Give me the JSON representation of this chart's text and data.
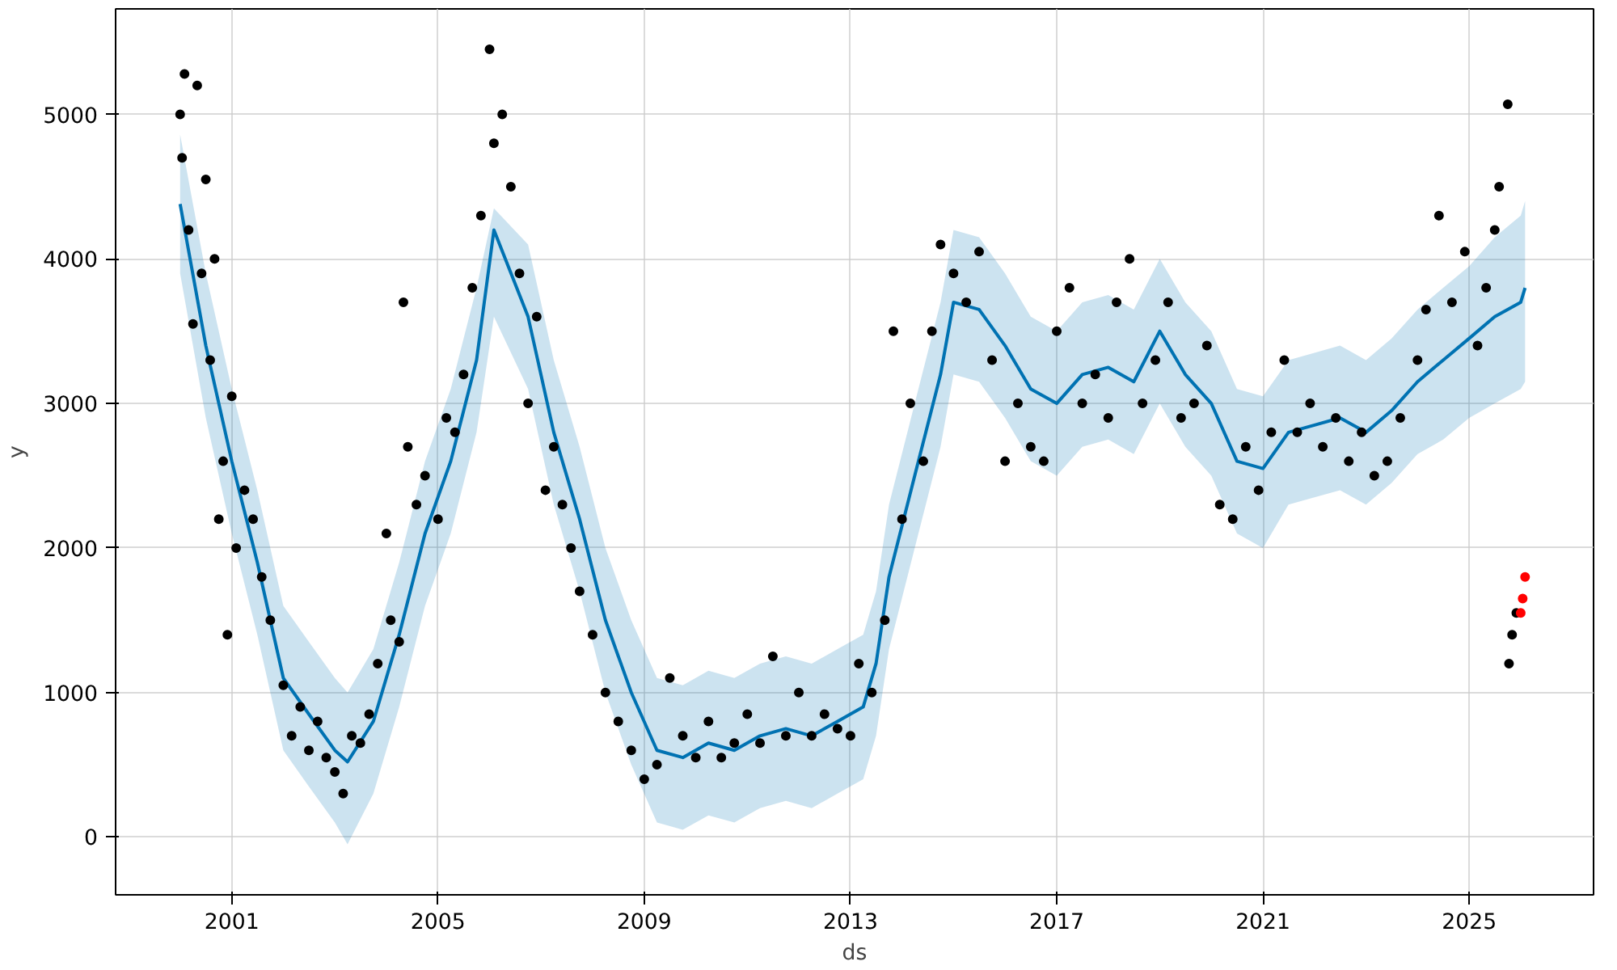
{
  "chart_data": {
    "type": "scatter",
    "xlabel": "ds",
    "ylabel": "y",
    "xlim": [
      "1998-10",
      "2027-06"
    ],
    "ylim": [
      -400,
      5730
    ],
    "xticks": [
      "2001",
      "2005",
      "2009",
      "2013",
      "2017",
      "2021",
      "2025"
    ],
    "yticks": [
      0,
      1000,
      2000,
      3000,
      4000,
      5000
    ],
    "grid": true,
    "series": [
      {
        "type": "line",
        "color": "#0072b2",
        "marker": "none",
        "line_style": "solid",
        "x": [
          "2000-01",
          "2000-07",
          "2001-01",
          "2001-07",
          "2002-01",
          "2002-07",
          "2003-01",
          "2003-04",
          "2003-10",
          "2004-04",
          "2004-10",
          "2005-04",
          "2005-10",
          "2006-02",
          "2006-10",
          "2007-04",
          "2007-10",
          "2008-04",
          "2008-10",
          "2009-04",
          "2009-10",
          "2010-04",
          "2010-10",
          "2011-04",
          "2011-10",
          "2012-04",
          "2012-10",
          "2013-04",
          "2013-07",
          "2013-10",
          "2014-04",
          "2014-10",
          "2015-01",
          "2015-07",
          "2016-01",
          "2016-07",
          "2017-01",
          "2017-07",
          "2018-01",
          "2018-07",
          "2019-01",
          "2019-07",
          "2020-01",
          "2020-07",
          "2021-01",
          "2021-07",
          "2022-01",
          "2022-07",
          "2023-01",
          "2023-07",
          "2024-01",
          "2024-07",
          "2025-01",
          "2025-07",
          "2026-01",
          "2026-02"
        ],
        "values": [
          4380,
          3400,
          2600,
          1900,
          1100,
          850,
          600,
          520,
          800,
          1400,
          2100,
          2600,
          3300,
          4200,
          3600,
          2800,
          2200,
          1500,
          1000,
          600,
          550,
          650,
          600,
          700,
          750,
          700,
          800,
          900,
          1200,
          1800,
          2500,
          3200,
          3700,
          3650,
          3400,
          3100,
          3000,
          3200,
          3250,
          3150,
          3500,
          3200,
          3000,
          2600,
          2550,
          2800,
          2850,
          2900,
          2800,
          2950,
          3150,
          3300,
          3450,
          3600,
          3700,
          3800
        ],
        "lower": [
          3900,
          2900,
          2100,
          1400,
          600,
          350,
          100,
          -50,
          300,
          900,
          1600,
          2100,
          2800,
          3600,
          3100,
          2300,
          1700,
          1000,
          500,
          100,
          50,
          150,
          100,
          200,
          250,
          200,
          300,
          400,
          700,
          1300,
          2000,
          2700,
          3200,
          3150,
          2900,
          2600,
          2500,
          2700,
          2750,
          2650,
          3000,
          2700,
          2500,
          2100,
          2000,
          2300,
          2350,
          2400,
          2300,
          2450,
          2650,
          2750,
          2900,
          3000,
          3100,
          3150
        ],
        "upper": [
          4860,
          3900,
          3100,
          2400,
          1600,
          1350,
          1100,
          1000,
          1300,
          1900,
          2600,
          3100,
          3800,
          4350,
          4100,
          3300,
          2700,
          2000,
          1500,
          1100,
          1050,
          1150,
          1100,
          1200,
          1250,
          1200,
          1300,
          1400,
          1700,
          2300,
          3000,
          3700,
          4200,
          4150,
          3900,
          3600,
          3500,
          3700,
          3750,
          3650,
          4000,
          3700,
          3500,
          3100,
          3050,
          3300,
          3350,
          3400,
          3300,
          3450,
          3650,
          3800,
          3950,
          4150,
          4300,
          4400
        ]
      },
      {
        "color": "#000000",
        "marker": "circle",
        "x": [
          "2000-01",
          "2000-01-15",
          "2000-02",
          "2000-03",
          "2000-04",
          "2000-05",
          "2000-06",
          "2000-07",
          "2000-08",
          "2000-09",
          "2000-10",
          "2000-11",
          "2000-12",
          "2001-01",
          "2001-02",
          "2001-04",
          "2001-06",
          "2001-08",
          "2001-10",
          "2002-01",
          "2002-03",
          "2002-05",
          "2002-07",
          "2002-09",
          "2002-11",
          "2003-01",
          "2003-03",
          "2003-05",
          "2003-07",
          "2003-09",
          "2003-11",
          "2004-01",
          "2004-02",
          "2004-04",
          "2004-05",
          "2004-06",
          "2004-08",
          "2004-10",
          "2005-01",
          "2005-03",
          "2005-05",
          "2005-07",
          "2005-09",
          "2005-11",
          "2006-01",
          "2006-02",
          "2006-04",
          "2006-06",
          "2006-08",
          "2006-10",
          "2006-12",
          "2007-02",
          "2007-04",
          "2007-06",
          "2007-08",
          "2007-10",
          "2008-01",
          "2008-04",
          "2008-07",
          "2008-10",
          "2009-01",
          "2009-04",
          "2009-07",
          "2009-10",
          "2010-01",
          "2010-04",
          "2010-07",
          "2010-10",
          "2011-01",
          "2011-04",
          "2011-07",
          "2011-10",
          "2012-01",
          "2012-04",
          "2012-07",
          "2012-10",
          "2013-01",
          "2013-03",
          "2013-06",
          "2013-09",
          "2013-11",
          "2014-01",
          "2014-03",
          "2014-06",
          "2014-08",
          "2014-10",
          "2015-01",
          "2015-04",
          "2015-07",
          "2015-10",
          "2016-01",
          "2016-04",
          "2016-07",
          "2016-10",
          "2017-01",
          "2017-04",
          "2017-07",
          "2017-10",
          "2018-01",
          "2018-03",
          "2018-06",
          "2018-09",
          "2018-12",
          "2019-03",
          "2019-06",
          "2019-09",
          "2019-12",
          "2020-03",
          "2020-06",
          "2020-09",
          "2020-12",
          "2021-03",
          "2021-06",
          "2021-09",
          "2021-12",
          "2022-03",
          "2022-06",
          "2022-09",
          "2022-12",
          "2023-03",
          "2023-06",
          "2023-09",
          "2024-01",
          "2024-03",
          "2024-06",
          "2024-09",
          "2024-12",
          "2025-03",
          "2025-05",
          "2025-07",
          "2025-08",
          "2025-10",
          "2025-10-10",
          "2025-11",
          "2025-12"
        ],
        "values": [
          5000,
          4700,
          5280,
          4200,
          3550,
          5200,
          3900,
          4550,
          3300,
          4000,
          2200,
          2600,
          1400,
          3050,
          2000,
          2400,
          2200,
          1800,
          1500,
          1050,
          700,
          900,
          600,
          800,
          550,
          450,
          300,
          700,
          650,
          850,
          1200,
          2100,
          1500,
          1350,
          3700,
          2700,
          2300,
          2500,
          2200,
          2900,
          2800,
          3200,
          3800,
          4300,
          5450,
          4800,
          5000,
          4500,
          3900,
          3000,
          3600,
          2400,
          2700,
          2300,
          2000,
          1700,
          1400,
          1000,
          800,
          600,
          400,
          500,
          1100,
          700,
          550,
          800,
          550,
          650,
          850,
          650,
          1250,
          700,
          1000,
          700,
          850,
          750,
          700,
          1200,
          1000,
          1500,
          3500,
          2200,
          3000,
          2600,
          3500,
          4100,
          3900,
          3700,
          4050,
          3300,
          2600,
          3000,
          2700,
          2600,
          3500,
          3800,
          3000,
          3200,
          2900,
          3700,
          4000,
          3000,
          3300,
          3700,
          2900,
          3000,
          3400,
          2300,
          2200,
          2700,
          2400,
          2800,
          3300,
          2800,
          3000,
          2700,
          2900,
          2600,
          2800,
          2500,
          2600,
          2900,
          3300,
          3650,
          4300,
          3700,
          4050,
          3400,
          3800,
          4200,
          4500,
          5070,
          1200,
          1400,
          1550
        ]
      },
      {
        "color": "#ff0000",
        "marker": "circle",
        "x": [
          "2026-01",
          "2026-01-15",
          "2026-02"
        ],
        "values": [
          1550,
          1650,
          1800
        ]
      }
    ]
  }
}
